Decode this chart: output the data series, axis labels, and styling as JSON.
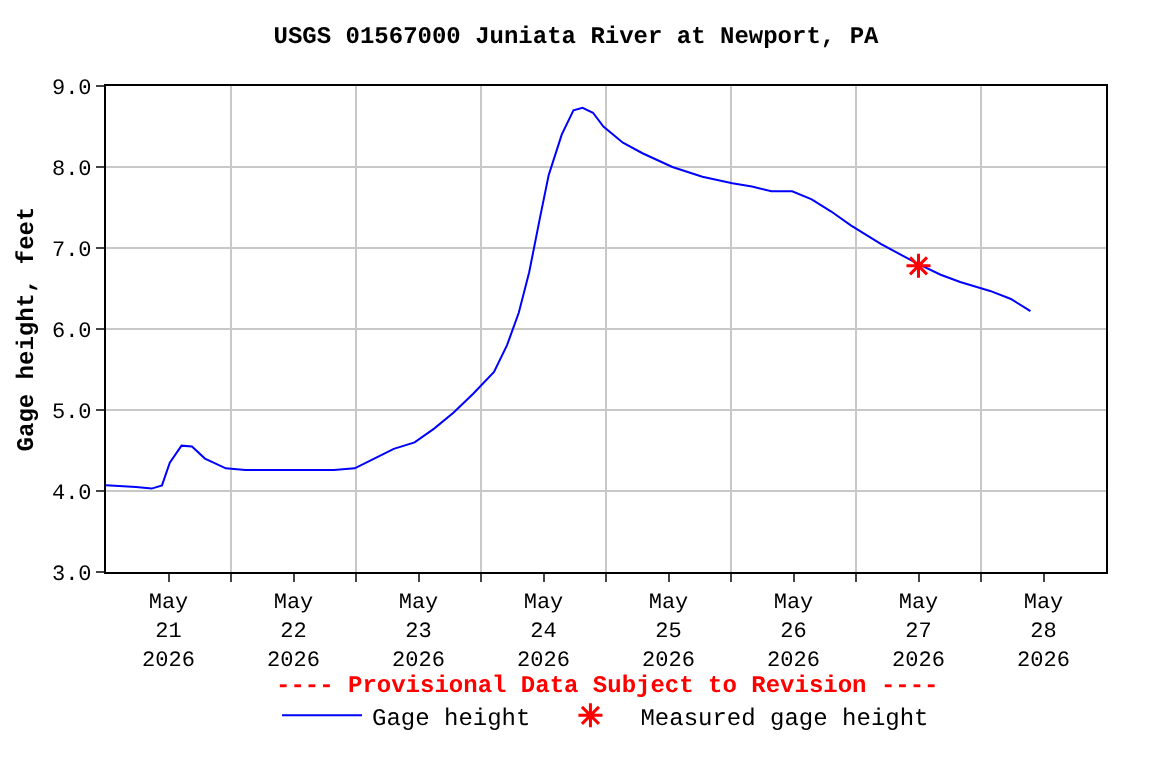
{
  "chart_data": {
    "type": "line",
    "title": "USGS 01567000 Juniata River at Newport, PA",
    "ylabel": "Gage height, feet",
    "annotations": [
      "---- Provisional Data Subject to Revision ----"
    ],
    "xlim": [
      "2026-05-21T00:00",
      "2026-05-29T00:00"
    ],
    "xticks": [
      {
        "value": "2026-05-21T12:00",
        "label": "May\n21\n2026"
      },
      {
        "value": "2026-05-22T12:00",
        "label": "May\n22\n2026"
      },
      {
        "value": "2026-05-23T12:00",
        "label": "May\n23\n2026"
      },
      {
        "value": "2026-05-24T12:00",
        "label": "May\n24\n2026"
      },
      {
        "value": "2026-05-25T12:00",
        "label": "May\n25\n2026"
      },
      {
        "value": "2026-05-26T12:00",
        "label": "May\n26\n2026"
      },
      {
        "value": "2026-05-27T12:00",
        "label": "May\n27\n2026"
      },
      {
        "value": "2026-05-28T12:00",
        "label": "May\n28\n2026"
      },
      {
        "value": "2026-05-22T00:00",
        "label": null
      },
      {
        "value": "2026-05-23T00:00",
        "label": null
      },
      {
        "value": "2026-05-24T00:00",
        "label": null
      },
      {
        "value": "2026-05-25T00:00",
        "label": null
      },
      {
        "value": "2026-05-26T00:00",
        "label": null
      },
      {
        "value": "2026-05-27T00:00",
        "label": null
      },
      {
        "value": "2026-05-28T00:00",
        "label": null
      }
    ],
    "ylim": [
      3.0,
      9.0
    ],
    "yticks": [
      {
        "value": 3,
        "label": "3.0"
      },
      {
        "value": 4,
        "label": "4.0"
      },
      {
        "value": 5,
        "label": "5.0"
      },
      {
        "value": 6,
        "label": "6.0"
      },
      {
        "value": 7,
        "label": "7.0"
      },
      {
        "value": 8,
        "label": "8.0"
      },
      {
        "value": 9,
        "label": "9.0"
      }
    ],
    "grid": true,
    "legend": "bottom",
    "series": [
      {
        "name": "Gage height",
        "color": "#0000ff",
        "marker": "none",
        "line_style": "solid",
        "x": [
          "2026-05-21T00:00",
          "2026-05-21T05:45",
          "2026-05-21T08:45",
          "2026-05-21T10:45",
          "2026-05-21T12:15",
          "2026-05-21T14:30",
          "2026-05-21T16:30",
          "2026-05-21T19:00",
          "2026-05-21T23:00",
          "2026-05-22T02:45",
          "2026-05-22T10:15",
          "2026-05-22T19:45",
          "2026-05-22T23:45",
          "2026-05-23T03:30",
          "2026-05-23T07:15",
          "2026-05-23T11:15",
          "2026-05-23T15:00",
          "2026-05-23T18:45",
          "2026-05-23T22:30",
          "2026-05-24T02:30",
          "2026-05-24T05:00",
          "2026-05-24T07:15",
          "2026-05-24T09:15",
          "2026-05-24T11:15",
          "2026-05-24T13:00",
          "2026-05-24T15:30",
          "2026-05-24T17:45",
          "2026-05-24T19:30",
          "2026-05-24T21:30",
          "2026-05-24T23:30",
          "2026-05-25T03:15",
          "2026-05-25T07:00",
          "2026-05-25T12:45",
          "2026-05-25T18:30",
          "2026-05-26T00:15",
          "2026-05-26T04:00",
          "2026-05-26T07:45",
          "2026-05-26T11:45",
          "2026-05-26T15:30",
          "2026-05-26T19:15",
          "2026-05-26T23:00",
          "2026-05-27T04:45",
          "2026-05-27T12:00",
          "2026-05-27T16:15",
          "2026-05-27T20:00",
          "2026-05-28T01:45",
          "2026-05-28T05:45",
          "2026-05-28T09:30"
        ],
        "values": [
          4.07,
          4.05,
          4.03,
          4.07,
          4.35,
          4.56,
          4.55,
          4.4,
          4.28,
          4.26,
          4.26,
          4.26,
          4.28,
          4.4,
          4.52,
          4.6,
          4.77,
          4.97,
          5.2,
          5.47,
          5.8,
          6.2,
          6.7,
          7.35,
          7.9,
          8.4,
          8.7,
          8.73,
          8.67,
          8.5,
          8.3,
          8.17,
          8.0,
          7.88,
          7.8,
          7.76,
          7.7,
          7.7,
          7.6,
          7.45,
          7.28,
          7.05,
          6.8,
          6.67,
          6.58,
          6.47,
          6.37,
          6.22
        ]
      },
      {
        "name": "Measured gage height",
        "color": "#ff0000",
        "type": "scatter",
        "marker": "cross",
        "x": [
          "2026-05-27T12:00"
        ],
        "values": [
          6.78
        ]
      }
    ]
  }
}
